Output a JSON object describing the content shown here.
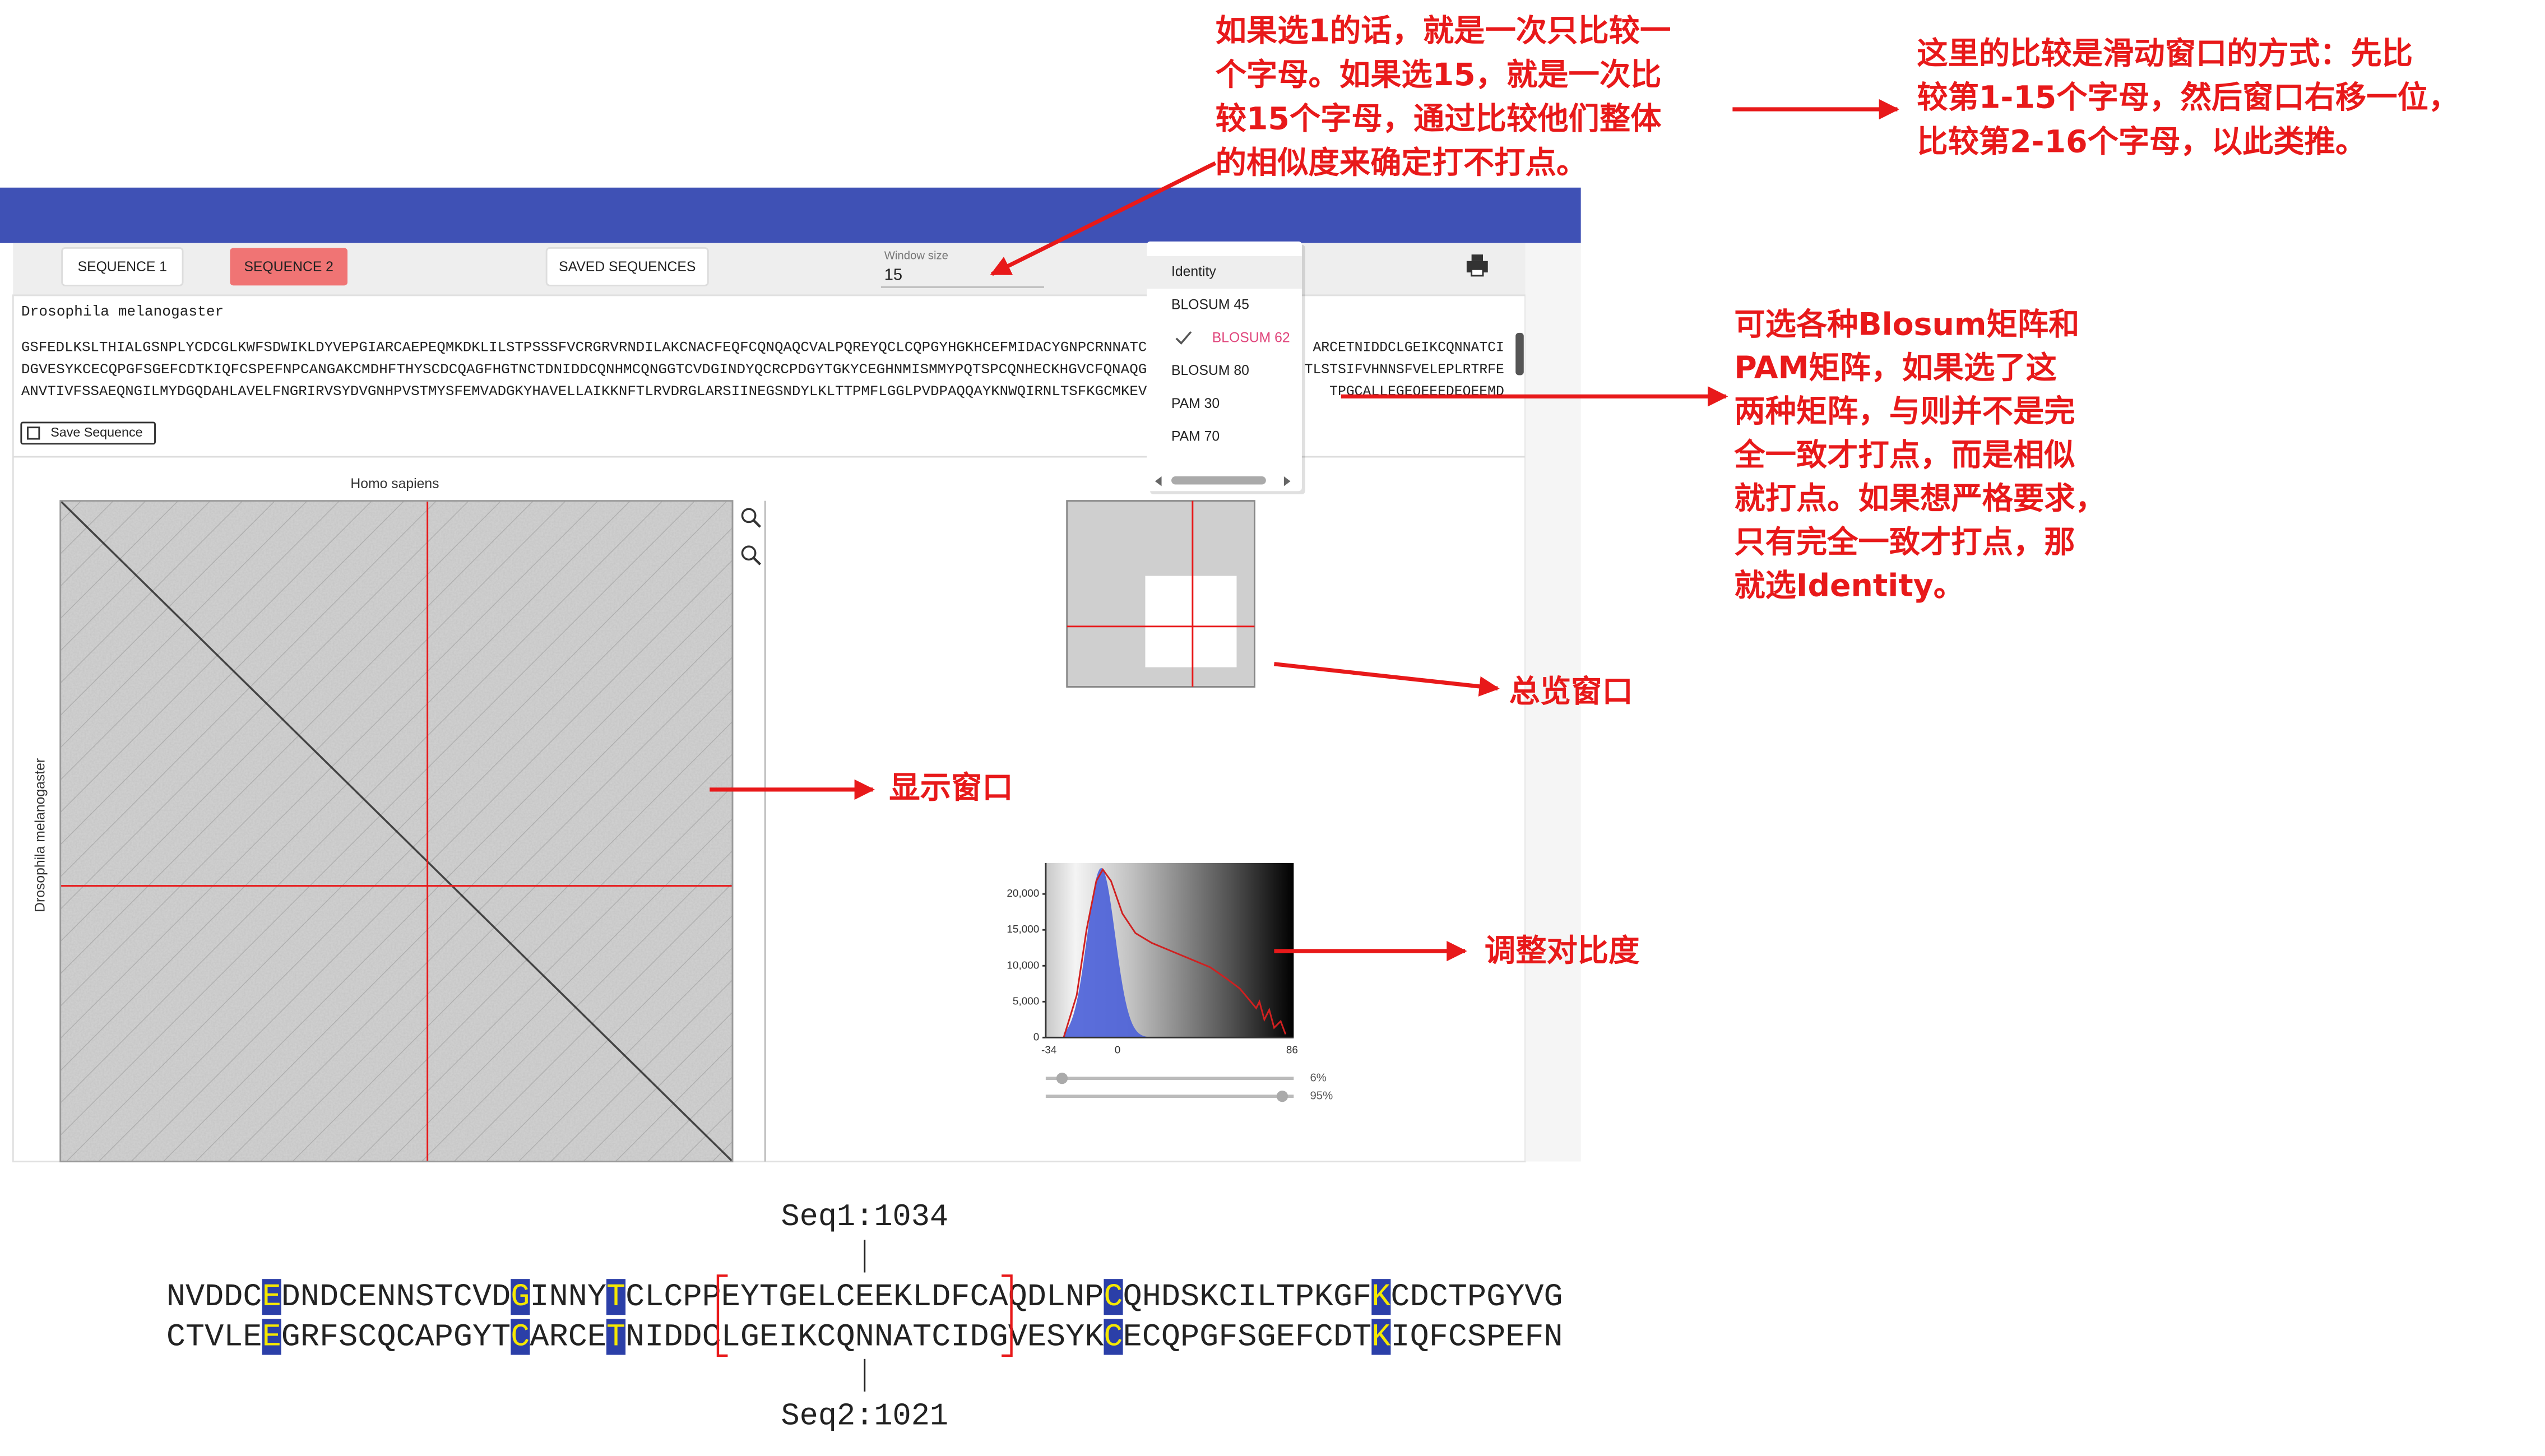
{
  "annotations": {
    "window_note": [
      "如果选1的话，就是一次只比较一",
      "个字母。如果选15，就是一次比",
      "较15个字母，通过比较他们整体",
      "的相似度来确定打不打点。"
    ],
    "sliding_note": [
      "这里的比较是滑动窗口的方式：先比",
      "较第1-15个字母，然后窗口右移一位，",
      "比较第2-16个字母，以此类推。"
    ],
    "matrix_note": [
      "可选各种Blosum矩阵和",
      "PAM矩阵，如果选了这",
      "两种矩阵，与则并不是完",
      "全一致才打点，而是相似",
      "就打点。如果想严格要求，",
      "只有完全一致才打点，那",
      "就选Identity。"
    ],
    "overview_label": "总览窗口",
    "display_label": "显示窗口",
    "contrast_label": "调整对比度"
  },
  "toolbar": {
    "sequence1": "SEQUENCE 1",
    "sequence2": "SEQUENCE 2",
    "saved": "SAVED SEQUENCES",
    "window_size_label": "Window size",
    "window_size": "15"
  },
  "sequence_panel": {
    "name": "Drosophila melanogaster",
    "lines": [
      {
        "left": "GSFEDLKSLTHIALGSNPLYCDCGLKWFSDWIKLDYVEPGIARCAEPEQMKDKLILSTPSSSFVCRGRVRNDILAKCNACFEQFCQNQAQCVALPQREYQCLCQPGYHGKHCEFMIDACYGNPCRNNATC",
        "right": "ARCETNIDDCLGEIKCQNNATCI"
      },
      {
        "left": "DGVESYKCECQPGFSGEFCDTKIQFCSPEFNPCANGAKCMDHFTHYSCDCQAGFHGTNCTDNIDDCQNHMCQNGGTCVDGINDYQCRCPDGYTGKYCEGHNMISMMYPQTSPCQNHECKHGVCFQNAQG",
        "right": "TLSTSIFVHNNSFVELEPLRTRFE"
      },
      {
        "left": "ANVTIVFSSAEQNGILMYDGQDAHLAVELFNGRIRVSYDVGNHPVSTMYSFEMVADGKYHAVELLAIKKNFTLRVDRGLARSIINEGSNDYLKLTTPMFLGGLPVDPAQQAYKNWQIRNLTSFKGCMKEV",
        "right": "TPGCALLEGEQEEEDEQEEMD"
      }
    ],
    "save_button": "Save Sequence"
  },
  "matrix_menu": {
    "items": [
      "Identity",
      "BLOSUM 45",
      "BLOSUM 62",
      "BLOSUM 80",
      "PAM 30",
      "PAM 70"
    ]
  },
  "dotplot": {
    "x_label": "Homo sapiens",
    "y_label": "Drosophila melanogaster"
  },
  "histogram": {
    "yticks": [
      "20,000",
      "15,000",
      "10,000",
      "5,000",
      "0"
    ],
    "xticks": [
      "-34",
      "0",
      "86"
    ],
    "sliders": [
      "6%",
      "95%"
    ]
  },
  "alignment": {
    "seq1_label": "Seq1:1034",
    "seq1": "NVDDCEDNDCENNSTCVDGINNYTCLCPPEYTGELCEEKLDFCAQDLNPCQHDSKCILTPKGFKCDCTPGYVG",
    "seq2": "CTVLEEGRFSCQCAPGYTCARCETNIDDCLGEIKCQNNATCIDGVESYKCECQPGFSGEFCDTKIQFCSPEFN",
    "seq2_label": "Seq2:1021"
  }
}
